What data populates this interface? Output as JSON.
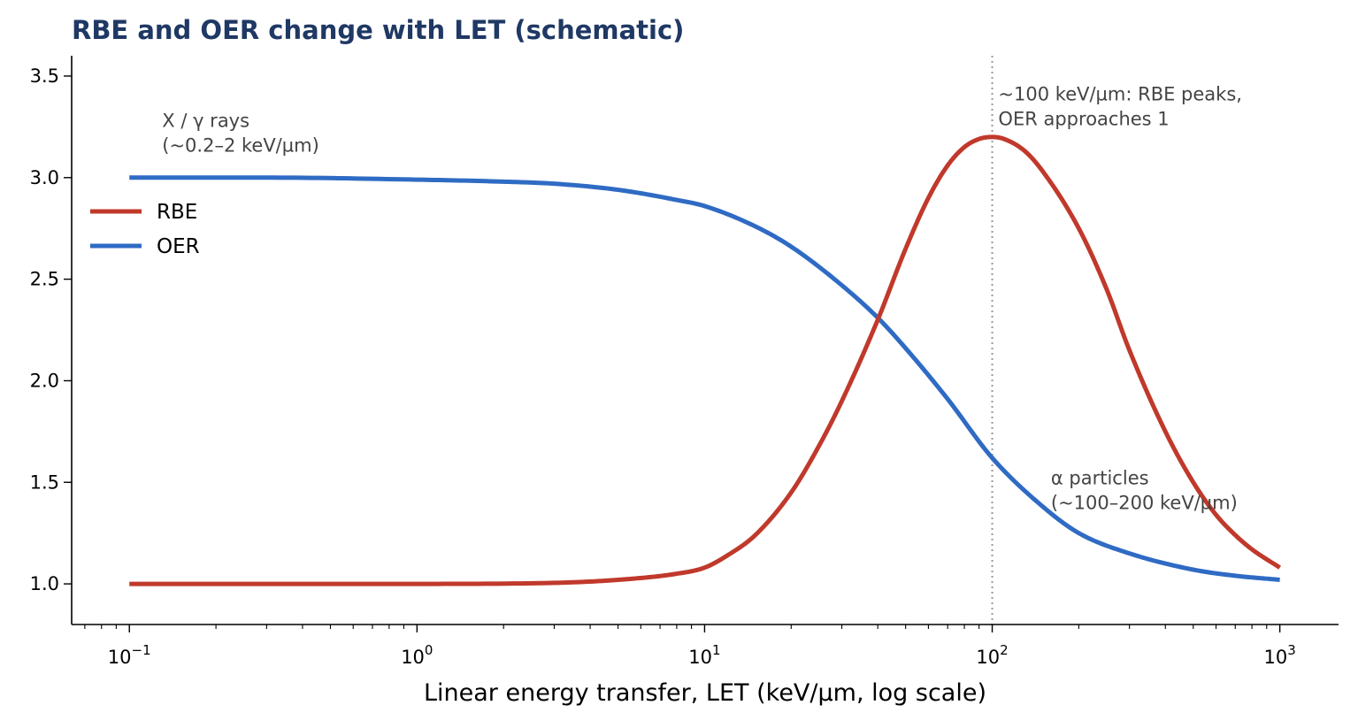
{
  "chart_data": {
    "type": "line",
    "title": "RBE and OER change with LET (schematic)",
    "xlabel": "Linear energy transfer, LET (keV/µm, log scale)",
    "ylabel": "",
    "xscale": "log",
    "xlim": [
      0.063,
      1600
    ],
    "ylim": [
      0.8,
      3.6
    ],
    "x_ticks": [
      {
        "value": 0.1,
        "base": "10",
        "exp": "−1"
      },
      {
        "value": 1,
        "base": "10",
        "exp": "0"
      },
      {
        "value": 10,
        "base": "10",
        "exp": "1"
      },
      {
        "value": 100,
        "base": "10",
        "exp": "2"
      },
      {
        "value": 1000,
        "base": "10",
        "exp": "3"
      }
    ],
    "y_ticks": [
      "1.0",
      "1.5",
      "2.0",
      "2.5",
      "3.0",
      "3.5"
    ],
    "grid": false,
    "legend_position": "upper-left",
    "series": [
      {
        "name": "RBE",
        "color": "#c0392b",
        "x": [
          0.1,
          0.3,
          1,
          3,
          5,
          8,
          10,
          12,
          15,
          20,
          25,
          30,
          40,
          50,
          60,
          70,
          80,
          90,
          100,
          110,
          130,
          150,
          200,
          250,
          300,
          400,
          500,
          600,
          700,
          800,
          1000
        ],
        "y": [
          1.0,
          1.0,
          1.0,
          1.005,
          1.02,
          1.05,
          1.08,
          1.14,
          1.24,
          1.45,
          1.68,
          1.9,
          2.3,
          2.65,
          2.9,
          3.06,
          3.15,
          3.19,
          3.2,
          3.19,
          3.13,
          3.03,
          2.75,
          2.45,
          2.15,
          1.75,
          1.5,
          1.34,
          1.24,
          1.17,
          1.08
        ]
      },
      {
        "name": "OER",
        "color": "#2f6bc4",
        "x": [
          0.1,
          0.3,
          1,
          2,
          3,
          5,
          8,
          10,
          15,
          20,
          30,
          40,
          50,
          70,
          100,
          150,
          200,
          300,
          500,
          700,
          1000
        ],
        "y": [
          3.0,
          3.0,
          2.99,
          2.98,
          2.97,
          2.94,
          2.89,
          2.86,
          2.76,
          2.66,
          2.47,
          2.31,
          2.16,
          1.91,
          1.62,
          1.38,
          1.25,
          1.15,
          1.07,
          1.04,
          1.02
        ]
      }
    ],
    "vline": {
      "x": 100,
      "color": "#999999"
    },
    "annotations": [
      {
        "id": "xray",
        "lines": [
          "X / γ rays",
          "(~0.2–2 keV/µm)"
        ],
        "x": 0.13,
        "y": 3.25
      },
      {
        "id": "peak",
        "lines": [
          "~100 keV/µm: RBE peaks,",
          "OER approaches 1"
        ],
        "x": 105,
        "y": 3.38
      },
      {
        "id": "alpha",
        "lines": [
          "α particles",
          "(~100–200 keV/µm)"
        ],
        "x": 160,
        "y": 1.49
      }
    ],
    "colors": {
      "title": "#1f3864",
      "annotation": "#444444"
    }
  }
}
